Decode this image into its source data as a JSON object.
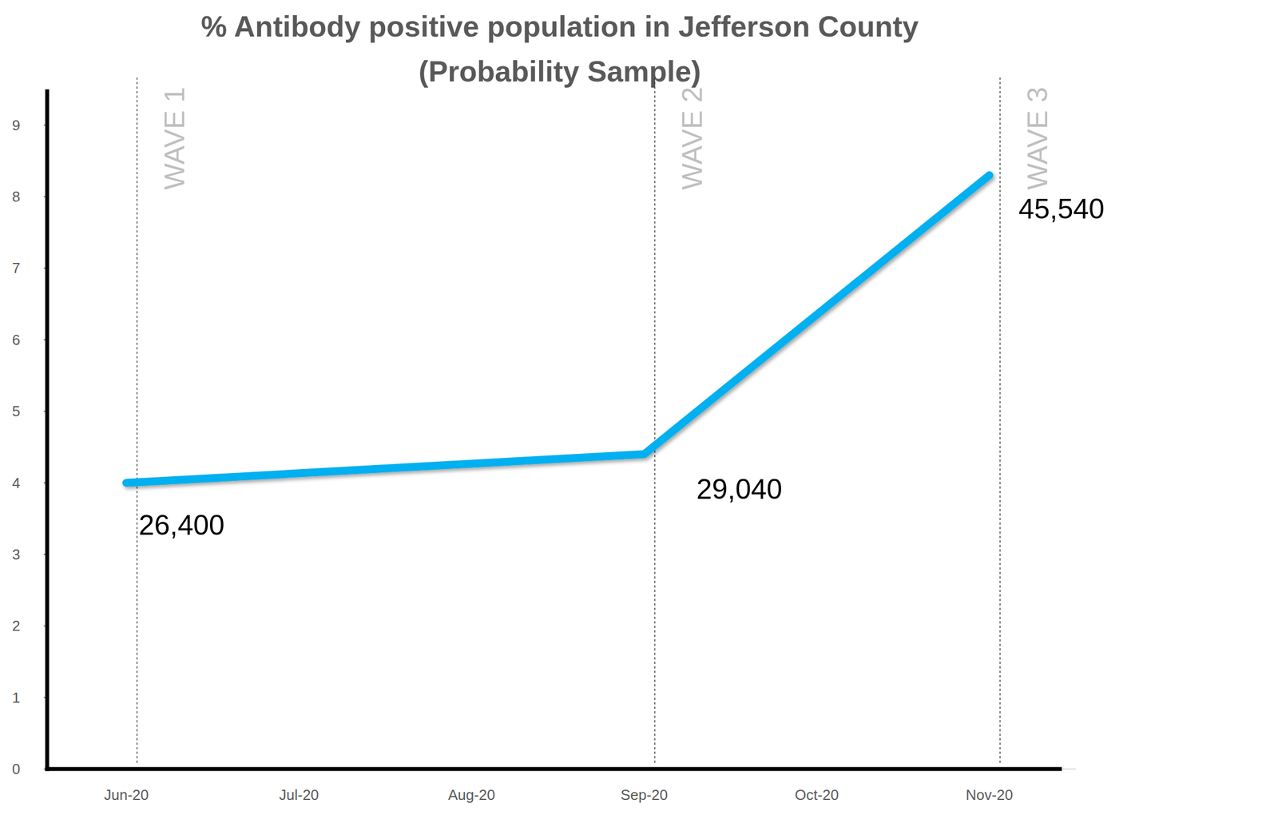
{
  "chart_data": {
    "type": "line",
    "title": "% Antibody positive population in Jefferson County\n(Probability Sample)",
    "categories": [
      "Jun-20",
      "Jul-20",
      "Aug-20",
      "Sep-20",
      "Oct-20",
      "Nov-20"
    ],
    "values": [
      4.0,
      null,
      null,
      4.4,
      null,
      8.3
    ],
    "color": "#00b0f0",
    "ylim": [
      0,
      9.5
    ],
    "yticks": [
      0,
      1,
      2,
      3,
      4,
      5,
      6,
      7,
      8,
      9
    ],
    "grid": false,
    "annotations": [
      {
        "x": "Jun-20",
        "text": "26,400"
      },
      {
        "x": "Sep-20",
        "text": "29,040"
      },
      {
        "x": "Nov-20",
        "text": "45,540"
      }
    ],
    "reference_lines": [
      {
        "x": "Jun-20",
        "label": "WAVE 1"
      },
      {
        "x": "Sep-20",
        "label": "WAVE 2"
      },
      {
        "x": "Nov-20",
        "label": "WAVE 3"
      }
    ]
  }
}
